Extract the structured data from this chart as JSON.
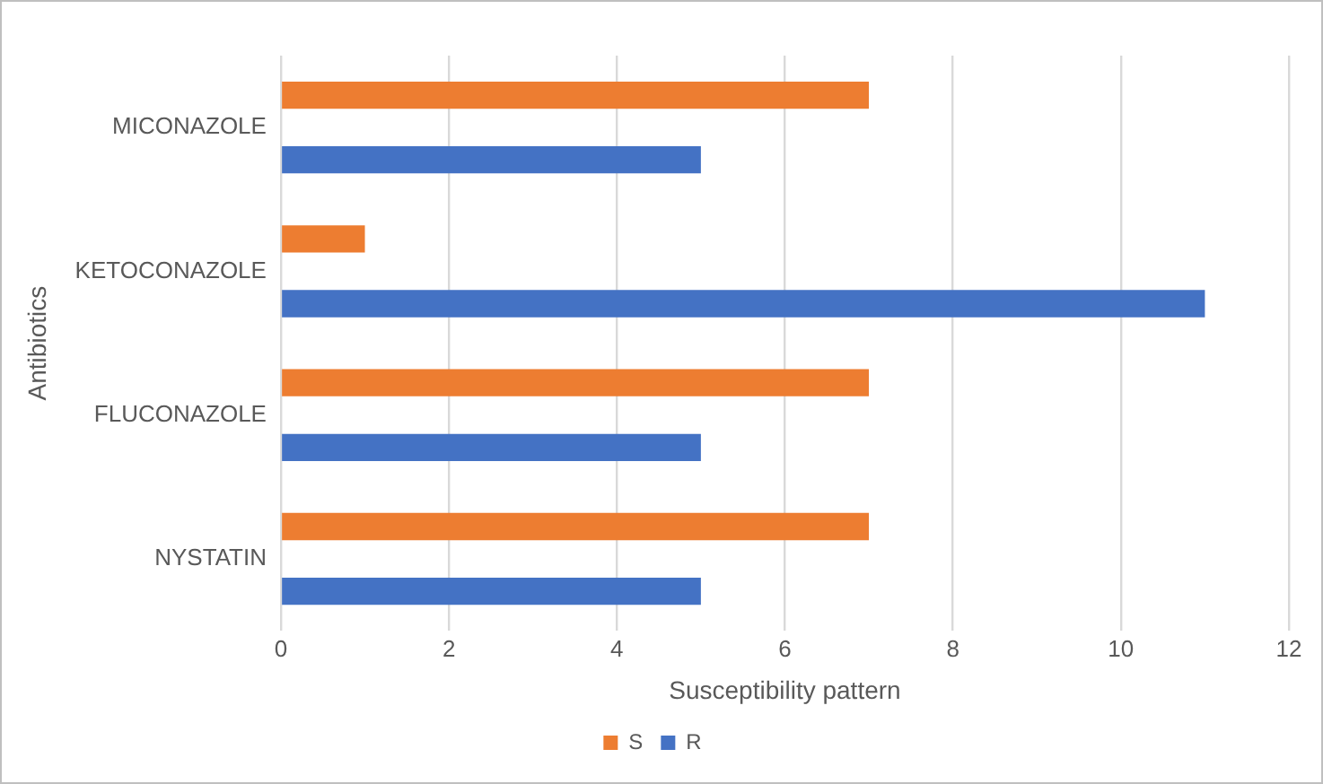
{
  "chart_data": {
    "type": "bar",
    "orientation": "horizontal",
    "xlabel": "Susceptibility pattern",
    "ylabel": "Antibiotics",
    "categories": [
      "MICONAZOLE",
      "KETOCONAZOLE",
      "FLUCONAZOLE",
      "NYSTATIN"
    ],
    "series": [
      {
        "name": "S",
        "color": "#ed7d31",
        "values": [
          7,
          1,
          7,
          7
        ]
      },
      {
        "name": "R",
        "color": "#4472c4",
        "values": [
          5,
          11,
          5,
          5
        ]
      }
    ],
    "xlim": [
      0,
      12
    ],
    "xticks": [
      0,
      2,
      4,
      6,
      8,
      10,
      12
    ],
    "grid": "x",
    "legend": "bottom"
  }
}
